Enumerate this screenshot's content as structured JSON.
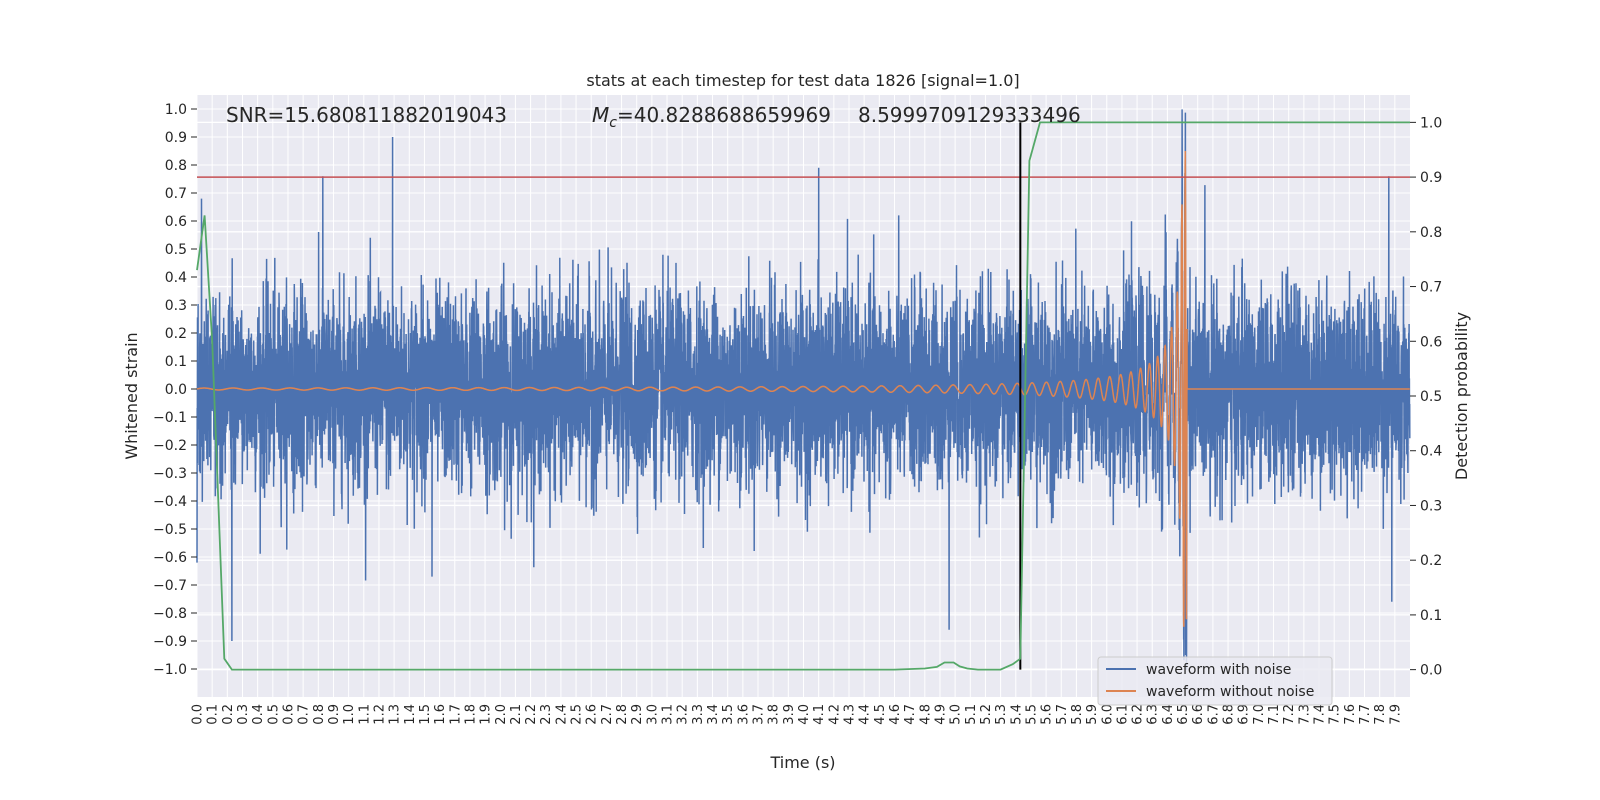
{
  "chart_data": {
    "type": "line",
    "title": "stats at each timestep for test data 1826 [signal=1.0]",
    "xlabel": "Time (s)",
    "ylabel": "Whitened strain",
    "ylabel_right": "Detection probability",
    "xlim": [
      0.0,
      8.0
    ],
    "ylim": [
      -1.1,
      1.05
    ],
    "ylim_right": [
      -0.05,
      1.05
    ],
    "grid": true,
    "background": "#eaeaf2",
    "xticks": [
      "0.0",
      "0.1",
      "0.2",
      "0.3",
      "0.4",
      "0.5",
      "0.6",
      "0.7",
      "0.8",
      "0.9",
      "1.0",
      "1.1",
      "1.2",
      "1.3",
      "1.4",
      "1.5",
      "1.6",
      "1.7",
      "1.8",
      "1.9",
      "2.0",
      "2.1",
      "2.2",
      "2.3",
      "2.4",
      "2.5",
      "2.6",
      "2.7",
      "2.8",
      "2.9",
      "3.0",
      "3.1",
      "3.2",
      "3.3",
      "3.4",
      "3.5",
      "3.6",
      "3.7",
      "3.8",
      "3.9",
      "4.0",
      "4.1",
      "4.2",
      "4.3",
      "4.4",
      "4.5",
      "4.6",
      "4.7",
      "4.8",
      "4.9",
      "5.0",
      "5.1",
      "5.2",
      "5.3",
      "5.4",
      "5.5",
      "5.6",
      "5.7",
      "5.8",
      "5.9",
      "6.0",
      "6.1",
      "6.2",
      "6.3",
      "6.4",
      "6.5",
      "6.6",
      "6.7",
      "6.8",
      "6.9",
      "7.0",
      "7.1",
      "7.2",
      "7.3",
      "7.4",
      "7.5",
      "7.6",
      "7.7",
      "7.8",
      "7.9"
    ],
    "yticks": [
      -1.0,
      -0.9,
      -0.8,
      -0.7,
      -0.6,
      -0.5,
      -0.4,
      -0.3,
      -0.2,
      -0.1,
      0.0,
      0.1,
      0.2,
      0.3,
      0.4,
      0.5,
      0.6,
      0.7,
      0.8,
      0.9,
      1.0
    ],
    "yticks_right": [
      0.0,
      0.1,
      0.2,
      0.3,
      0.4,
      0.5,
      0.6,
      0.7,
      0.8,
      0.9,
      1.0
    ],
    "annotations": {
      "snr": "SNR=15.680811882019043",
      "mc_prefix": "M",
      "mc_sub": "c",
      "mc_value": "=40.8288688659969",
      "overlap_value": "8.5999709129333496"
    },
    "series": [
      {
        "name": "waveform with noise",
        "color": "#4c72b0",
        "axis": "left",
        "notable_peaks": [
          [
            0.03,
            0.68
          ],
          [
            0.23,
            -0.9
          ],
          [
            1.29,
            0.9
          ],
          [
            0.83,
            0.76
          ],
          [
            1.55,
            -0.67
          ],
          [
            4.1,
            0.79
          ],
          [
            4.96,
            -0.86
          ],
          [
            6.52,
            0.95
          ],
          [
            6.52,
            -0.95
          ],
          [
            7.86,
            0.76
          ],
          [
            7.88,
            -0.76
          ],
          [
            0.0,
            -0.62
          ]
        ]
      },
      {
        "name": "waveform without noise",
        "color": "#dd8452",
        "axis": "left",
        "merger_time": 6.53,
        "peak_amplitude": 0.85
      },
      {
        "color": "#55a868",
        "axis": "right",
        "x": [
          0.0,
          0.05,
          0.1,
          0.18,
          0.23,
          0.5,
          1.0,
          2.0,
          3.0,
          4.0,
          4.6,
          4.8,
          4.88,
          4.93,
          4.99,
          5.03,
          5.08,
          5.15,
          5.3,
          5.38,
          5.43,
          5.49,
          5.56,
          6.0,
          7.0,
          8.0
        ],
        "y": [
          0.73,
          0.83,
          0.6,
          0.02,
          0.0,
          0.0,
          0.0,
          0.0,
          0.0,
          0.0,
          0.0,
          0.002,
          0.005,
          0.013,
          0.013,
          0.006,
          0.002,
          0.0,
          0.0,
          0.01,
          0.02,
          0.93,
          1.0,
          1.0,
          1.0,
          1.0
        ]
      }
    ],
    "threshold": {
      "value": 0.9,
      "axis": "right",
      "color": "#c44e52"
    },
    "vline": {
      "x": 5.43,
      "color": "#000000"
    },
    "legend": {
      "placement": "lower-right",
      "entries": [
        "waveform with noise",
        "waveform without noise"
      ]
    }
  }
}
